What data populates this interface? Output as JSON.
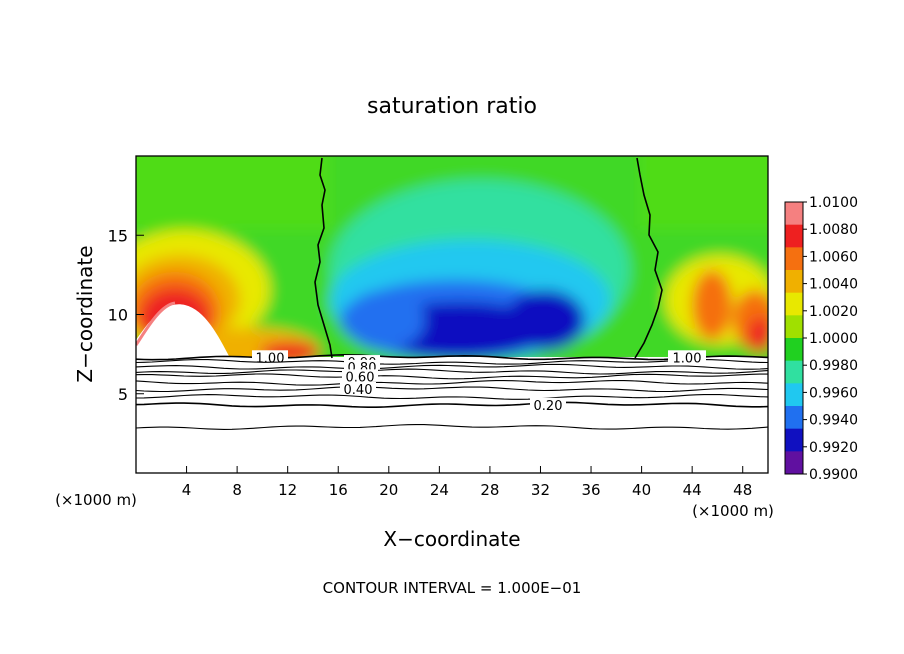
{
  "chart_data": {
    "type": "heatmap",
    "title": "saturation ratio",
    "xlabel": "X−coordinate",
    "ylabel": "Z−coordinate",
    "x_unit": "(×1000 m)",
    "z_unit": "(×1000 m)",
    "xlim": [
      0,
      50
    ],
    "ylim": [
      0,
      20
    ],
    "xticks": [
      4,
      8,
      12,
      16,
      20,
      24,
      28,
      32,
      36,
      40,
      44,
      48
    ],
    "xtick_labels": [
      "4",
      "8",
      "12",
      "16",
      "20",
      "24",
      "28",
      "32",
      "36",
      "40",
      "44",
      "48"
    ],
    "yticks": [
      5,
      10,
      15
    ],
    "ytick_labels": [
      "5",
      "10",
      "15"
    ],
    "footer": "CONTOUR INTERVAL = 1.000E−01",
    "colorbar": {
      "levels": [
        "1.0100",
        "1.0080",
        "1.0060",
        "1.0040",
        "1.0020",
        "1.0000",
        "0.9980",
        "0.9960",
        "0.9940",
        "0.9920",
        "0.9900"
      ],
      "colors": [
        "#f58080",
        "#ee2020",
        "#f57010",
        "#f0b000",
        "#e8e800",
        "#a0e000",
        "#20d020",
        "#30e0a0",
        "#20c8f0",
        "#2070f0",
        "#1010c0",
        "#6010a0"
      ]
    },
    "contours": [
      {
        "value": 1.0,
        "label": "1.00",
        "z": 7.3
      },
      {
        "value": 0.9,
        "label": "0.90",
        "z": 7.0
      },
      {
        "value": 0.8,
        "label": "0.80",
        "z": 6.7
      },
      {
        "value": 0.7,
        "label": "",
        "z": 6.4
      },
      {
        "value": 0.6,
        "label": "0.60",
        "z": 6.1
      },
      {
        "value": 0.5,
        "label": "",
        "z": 5.7
      },
      {
        "value": 0.4,
        "label": "0.40",
        "z": 5.3
      },
      {
        "value": 0.3,
        "label": "",
        "z": 4.8
      },
      {
        "value": 0.2,
        "label": "0.20",
        "z": 4.3
      },
      {
        "value": 0.1,
        "label": "",
        "z": 2.9
      }
    ],
    "saturation_boundaries_x": [
      15.2,
      38.8
    ]
  }
}
